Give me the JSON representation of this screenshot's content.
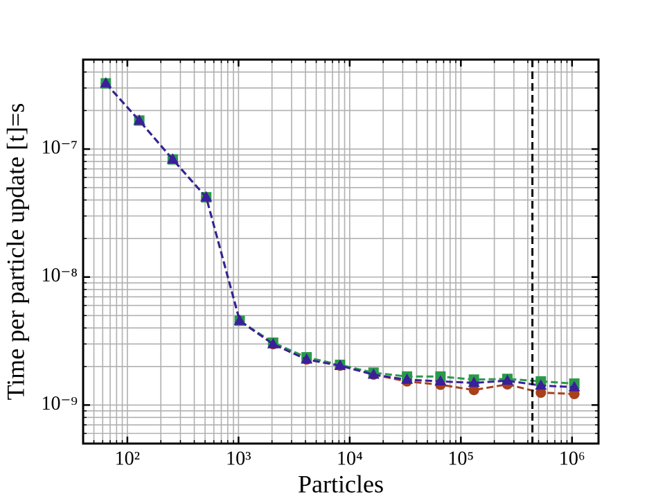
{
  "chart_data": {
    "type": "line",
    "xlabel": "Particles",
    "ylabel": "Time per particle update [t]=s",
    "x": [
      64,
      128,
      256,
      512,
      1024,
      2048,
      4096,
      8192,
      16384,
      32768,
      65536,
      131072,
      262144,
      524288,
      1048576
    ],
    "series": [
      {
        "color": "#a8401c",
        "marker": "circle",
        "values": [
          3.26e-07,
          1.67e-07,
          8.3e-08,
          4.2e-08,
          4.56e-09,
          2.99e-09,
          2.27e-09,
          2.03e-09,
          1.73e-09,
          1.53e-09,
          1.44e-09,
          1.31e-09,
          1.45e-09,
          1.25e-09,
          1.22e-09
        ]
      },
      {
        "color": "#2a9a4a",
        "marker": "square",
        "values": [
          3.26e-07,
          1.67e-07,
          8.3e-08,
          4.2e-08,
          4.56e-09,
          3.07e-09,
          2.36e-09,
          2.06e-09,
          1.79e-09,
          1.67e-09,
          1.67e-09,
          1.58e-09,
          1.6e-09,
          1.53e-09,
          1.47e-09
        ]
      },
      {
        "color": "#3a1f9a",
        "marker": "triangle",
        "values": [
          3.26e-07,
          1.67e-07,
          8.3e-08,
          4.2e-08,
          4.56e-09,
          2.99e-09,
          2.27e-09,
          2.03e-09,
          1.73e-09,
          1.58e-09,
          1.53e-09,
          1.49e-09,
          1.55e-09,
          1.42e-09,
          1.38e-09
        ]
      }
    ],
    "xscale": "log",
    "yscale": "log",
    "xlim": [
      40,
      1730000
    ],
    "ylim": [
      5e-10,
      5e-07
    ],
    "xticks": [
      {
        "value": 100,
        "label": "10²"
      },
      {
        "value": 1000,
        "label": "10³"
      },
      {
        "value": 10000,
        "label": "10⁴"
      },
      {
        "value": 100000,
        "label": "10⁵"
      },
      {
        "value": 1000000,
        "label": "10⁶"
      }
    ],
    "yticks": [
      {
        "value": 1e-09,
        "label": "10⁻⁹"
      },
      {
        "value": 1e-08,
        "label": "10⁻⁸"
      },
      {
        "value": 1e-07,
        "label": "10⁻⁷"
      }
    ],
    "xminorticks": [
      40,
      50,
      60,
      70,
      80,
      90,
      200,
      300,
      400,
      500,
      600,
      700,
      800,
      900,
      2000,
      3000,
      4000,
      5000,
      6000,
      7000,
      8000,
      9000,
      20000,
      30000,
      40000,
      50000,
      60000,
      70000,
      80000,
      90000,
      200000,
      300000,
      400000,
      500000,
      600000,
      700000,
      800000,
      900000
    ],
    "yminorticks": [
      6e-10,
      7e-10,
      8e-10,
      9e-10,
      2e-09,
      3e-09,
      4e-09,
      5e-09,
      6e-09,
      7e-09,
      8e-09,
      9e-09,
      2e-08,
      3e-08,
      4e-08,
      5e-08,
      6e-08,
      7e-08,
      8e-08,
      9e-08,
      2e-07,
      3e-07,
      4e-07
    ],
    "vlines": [
      440000
    ],
    "grid": true
  }
}
